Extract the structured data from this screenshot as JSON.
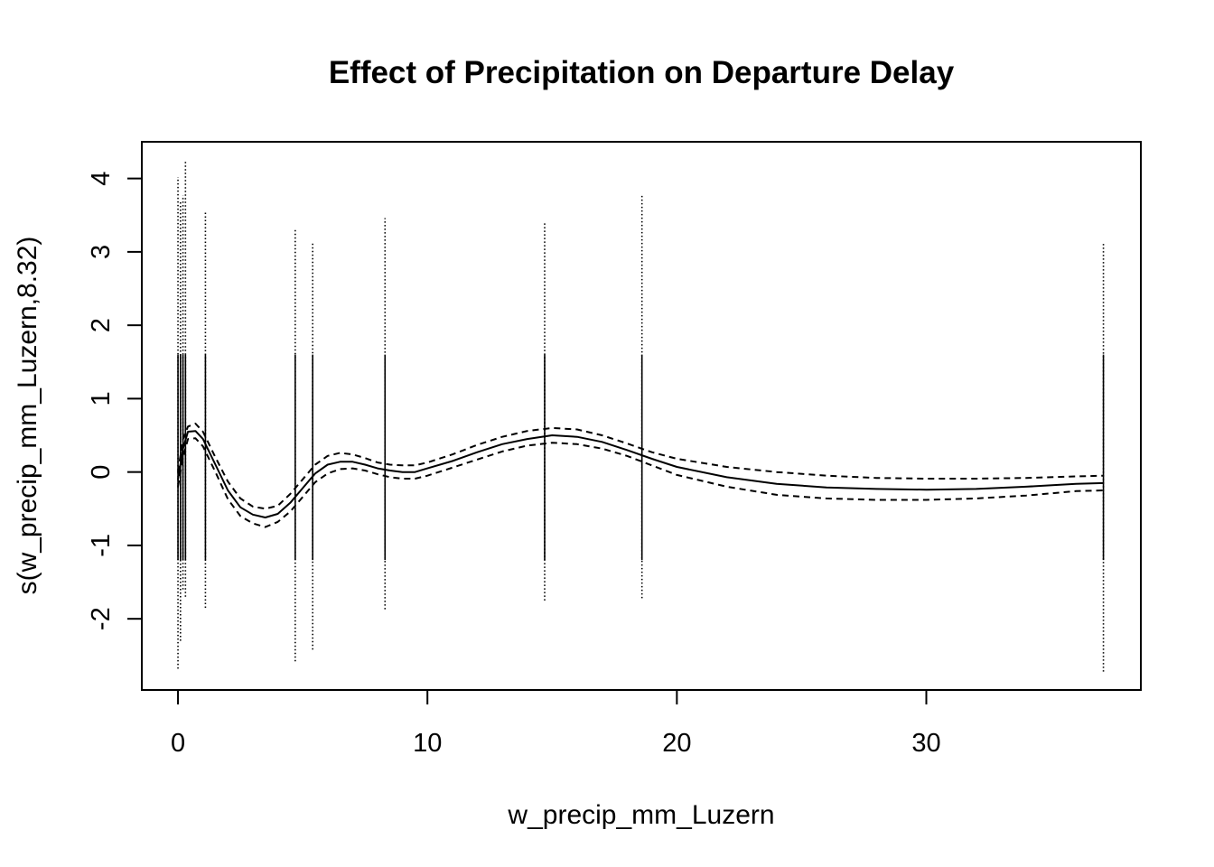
{
  "chart_data": {
    "type": "line",
    "title": "Effect of Precipitation on Departure Delay",
    "xlabel": "w_precip_mm_Luzern",
    "ylabel": "s(w_precip_mm_Luzern,8.32)",
    "xlim": [
      -1.45,
      38.6
    ],
    "ylim": [
      -2.97,
      4.5
    ],
    "x_ticks": [
      0,
      10,
      20,
      30
    ],
    "x_tick_labels": [
      "0",
      "10",
      "20",
      "30"
    ],
    "y_ticks": [
      -2,
      -1,
      0,
      1,
      2,
      3,
      4
    ],
    "y_tick_labels": [
      "-2",
      "-1",
      "0",
      "1",
      "2",
      "3",
      "4"
    ],
    "grid": false,
    "legend": "none",
    "series": [
      {
        "style": "solid",
        "x": [
          0,
          0.2,
          0.4,
          0.7,
          1.0,
          1.5,
          2.0,
          2.5,
          3.0,
          3.5,
          4.0,
          4.5,
          5.0,
          5.5,
          6.0,
          6.5,
          7.0,
          7.5,
          8.0,
          8.5,
          9.0,
          9.5,
          10,
          11,
          12,
          13,
          14,
          15,
          16,
          17,
          18,
          19,
          20,
          22,
          24,
          26,
          28,
          30,
          32,
          34,
          36,
          37.1
        ],
        "y": [
          -0.1,
          0.32,
          0.55,
          0.56,
          0.45,
          0.1,
          -0.25,
          -0.48,
          -0.58,
          -0.62,
          -0.57,
          -0.42,
          -0.22,
          -0.02,
          0.1,
          0.14,
          0.14,
          0.1,
          0.05,
          0.02,
          0.0,
          0.0,
          0.05,
          0.15,
          0.27,
          0.38,
          0.45,
          0.5,
          0.48,
          0.41,
          0.3,
          0.18,
          0.07,
          -0.07,
          -0.16,
          -0.21,
          -0.23,
          -0.24,
          -0.23,
          -0.2,
          -0.16,
          -0.15
        ]
      },
      {
        "style": "dashed",
        "x": [
          0,
          0.2,
          0.4,
          0.7,
          1.0,
          1.5,
          2.0,
          2.5,
          3.0,
          3.5,
          4.0,
          4.5,
          5.0,
          5.5,
          6.0,
          6.5,
          7.0,
          7.5,
          8.0,
          8.5,
          9.0,
          9.5,
          10,
          11,
          12,
          13,
          14,
          15,
          16,
          17,
          18,
          19,
          20,
          22,
          24,
          26,
          28,
          30,
          32,
          34,
          36,
          37.1
        ],
        "y": [
          0.0,
          0.45,
          0.62,
          0.66,
          0.55,
          0.2,
          -0.13,
          -0.36,
          -0.47,
          -0.5,
          -0.46,
          -0.3,
          -0.1,
          0.1,
          0.22,
          0.26,
          0.24,
          0.19,
          0.13,
          0.1,
          0.09,
          0.09,
          0.13,
          0.24,
          0.37,
          0.48,
          0.56,
          0.6,
          0.58,
          0.5,
          0.39,
          0.27,
          0.18,
          0.07,
          0.0,
          -0.05,
          -0.08,
          -0.09,
          -0.09,
          -0.08,
          -0.06,
          -0.05
        ]
      },
      {
        "style": "dashed",
        "x": [
          0,
          0.2,
          0.4,
          0.7,
          1.0,
          1.5,
          2.0,
          2.5,
          3.0,
          3.5,
          4.0,
          4.5,
          5.0,
          5.5,
          6.0,
          6.5,
          7.0,
          7.5,
          8.0,
          8.5,
          9.0,
          9.5,
          10,
          11,
          12,
          13,
          14,
          15,
          16,
          17,
          18,
          19,
          20,
          22,
          24,
          26,
          28,
          30,
          32,
          34,
          36,
          37.1
        ],
        "y": [
          -0.2,
          0.2,
          0.45,
          0.46,
          0.35,
          0.0,
          -0.37,
          -0.6,
          -0.7,
          -0.75,
          -0.68,
          -0.54,
          -0.34,
          -0.14,
          -0.02,
          0.04,
          0.05,
          0.02,
          -0.03,
          -0.07,
          -0.09,
          -0.09,
          -0.05,
          0.06,
          0.17,
          0.28,
          0.36,
          0.4,
          0.38,
          0.32,
          0.22,
          0.09,
          -0.04,
          -0.2,
          -0.31,
          -0.36,
          -0.38,
          -0.38,
          -0.36,
          -0.32,
          -0.26,
          -0.25
        ]
      }
    ],
    "rug": [
      {
        "x": 0.0,
        "ymin": -2.68,
        "ymax": 4.02
      },
      {
        "x": 0.1,
        "ymin": -2.3,
        "ymax": 3.7
      },
      {
        "x": 0.2,
        "ymin": -1.6,
        "ymax": 3.77
      },
      {
        "x": 0.3,
        "ymin": -1.7,
        "ymax": 4.23
      },
      {
        "x": 1.1,
        "ymin": -1.85,
        "ymax": 3.55
      },
      {
        "x": 4.7,
        "ymin": -2.58,
        "ymax": 3.32
      },
      {
        "x": 5.4,
        "ymin": -2.42,
        "ymax": 3.12
      },
      {
        "x": 8.3,
        "ymin": -1.87,
        "ymax": 3.46
      },
      {
        "x": 14.7,
        "ymin": -1.75,
        "ymax": 3.4
      },
      {
        "x": 18.6,
        "ymin": -1.72,
        "ymax": 3.77
      },
      {
        "x": 37.1,
        "ymin": -2.72,
        "ymax": 3.12
      }
    ],
    "colors": {
      "line": "#000000",
      "background": "#ffffff"
    }
  }
}
